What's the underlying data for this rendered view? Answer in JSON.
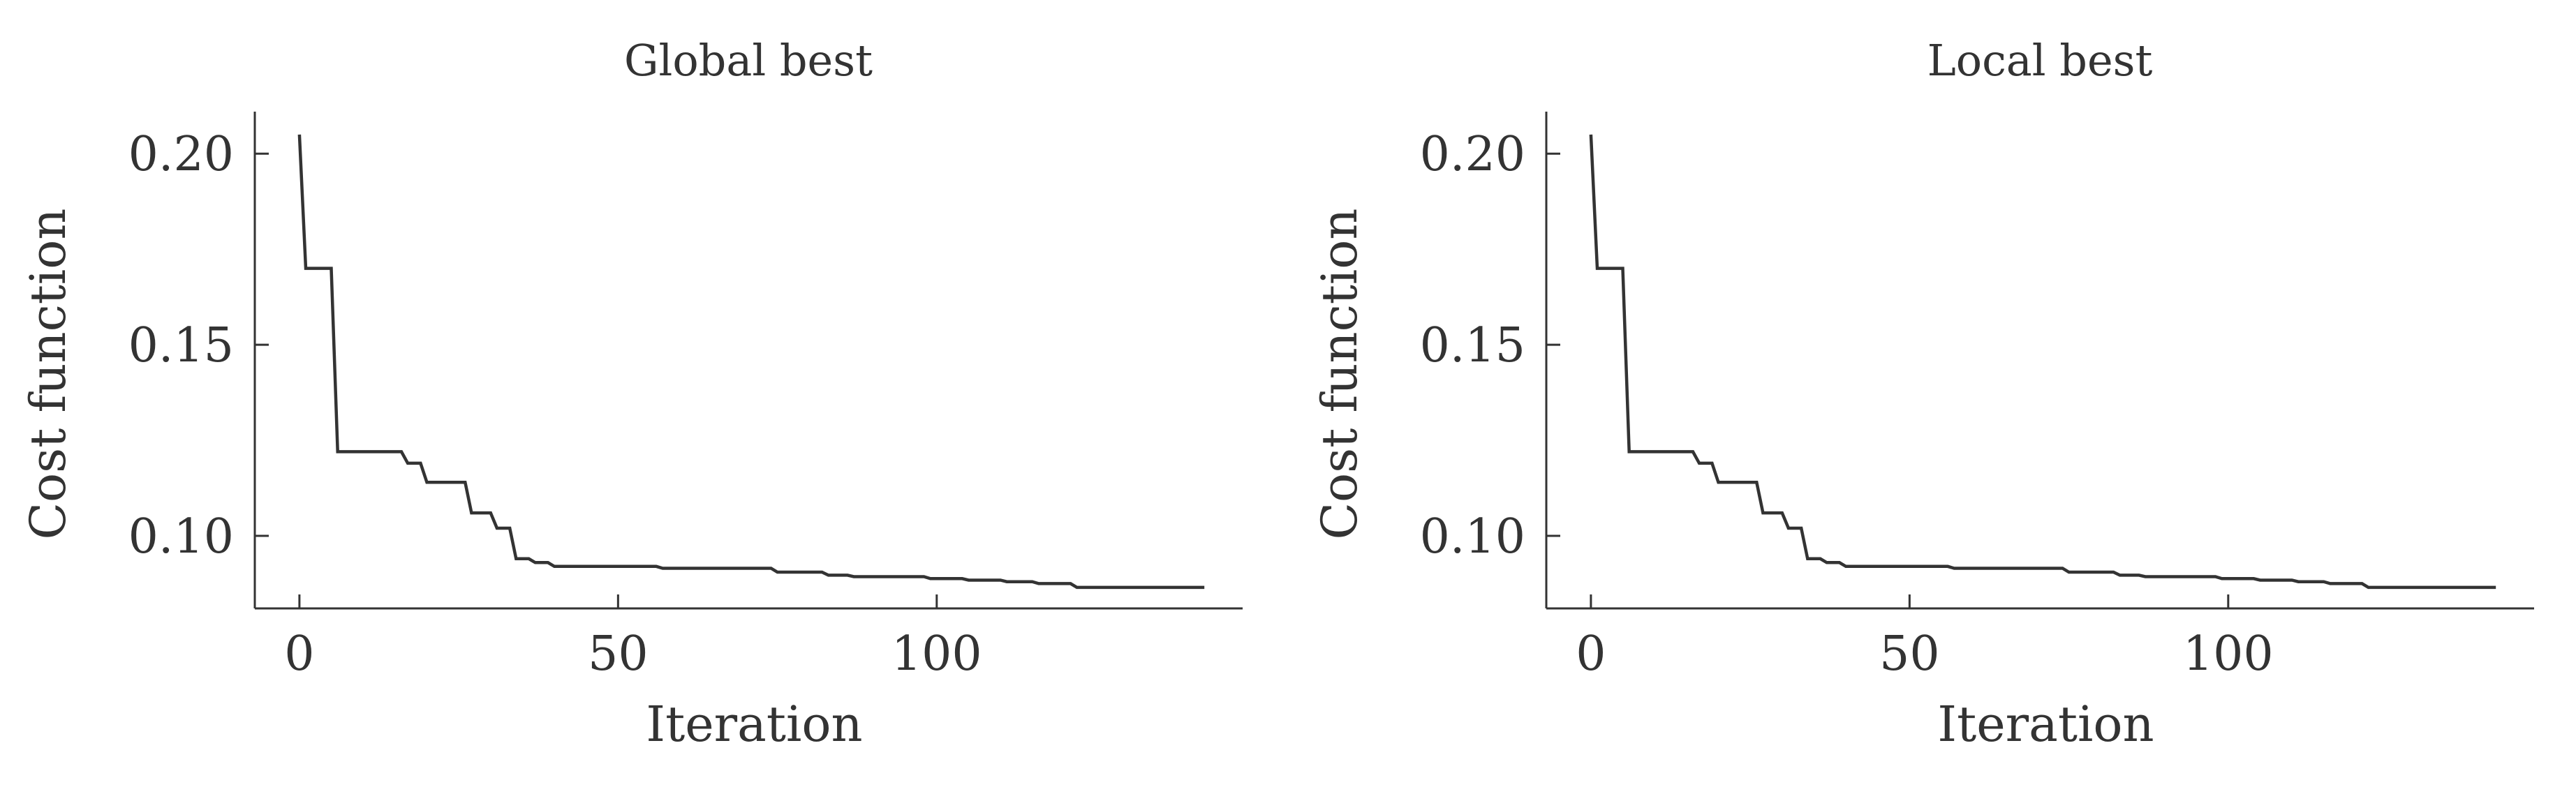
{
  "chart_data": [
    {
      "type": "line",
      "title": "Global best",
      "xlabel": "Iteration",
      "ylabel": "Cost function",
      "xlim": [
        -7,
        148
      ],
      "ylim": [
        0.081,
        0.211
      ],
      "xticks": [
        0,
        50,
        100
      ],
      "yticks": [
        0.1,
        0.15,
        0.2
      ],
      "xtick_labels": [
        "0",
        "50",
        "100"
      ],
      "ytick_labels": [
        "0.10",
        "0.15",
        "0.20"
      ],
      "grid": false,
      "series": [
        {
          "color": "#333333",
          "x": [
            0,
            1,
            5,
            6,
            16,
            17,
            19,
            20,
            26,
            27,
            30,
            31,
            33,
            34,
            36,
            37,
            39,
            40,
            56,
            57,
            74,
            75,
            82,
            83,
            86,
            87,
            98,
            99,
            104,
            105,
            110,
            111,
            115,
            116,
            121,
            122,
            142
          ],
          "y": [
            0.205,
            0.17,
            0.17,
            0.122,
            0.122,
            0.119,
            0.119,
            0.114,
            0.114,
            0.106,
            0.106,
            0.102,
            0.102,
            0.094,
            0.094,
            0.093,
            0.093,
            0.092,
            0.092,
            0.0915,
            0.0915,
            0.0905,
            0.0905,
            0.0897,
            0.0897,
            0.0893,
            0.0893,
            0.0888,
            0.0888,
            0.0884,
            0.0884,
            0.088,
            0.088,
            0.0875,
            0.0875,
            0.0865,
            0.0865
          ]
        }
      ]
    },
    {
      "type": "line",
      "title": "Local best",
      "xlabel": "Iteration",
      "ylabel": "Cost function",
      "xlim": [
        -7,
        148
      ],
      "ylim": [
        0.081,
        0.211
      ],
      "xticks": [
        0,
        50,
        100
      ],
      "yticks": [
        0.1,
        0.15,
        0.2
      ],
      "xtick_labels": [
        "0",
        "50",
        "100"
      ],
      "ytick_labels": [
        "0.10",
        "0.15",
        "0.20"
      ],
      "grid": false,
      "series": [
        {
          "color": "#333333",
          "x": [
            0,
            1,
            5,
            6,
            16,
            17,
            19,
            20,
            26,
            27,
            30,
            31,
            33,
            34,
            36,
            37,
            39,
            40,
            56,
            57,
            74,
            75,
            82,
            83,
            86,
            87,
            98,
            99,
            104,
            105,
            110,
            111,
            115,
            116,
            121,
            122,
            142
          ],
          "y": [
            0.205,
            0.17,
            0.17,
            0.122,
            0.122,
            0.119,
            0.119,
            0.114,
            0.114,
            0.106,
            0.106,
            0.102,
            0.102,
            0.094,
            0.094,
            0.093,
            0.093,
            0.092,
            0.092,
            0.0915,
            0.0915,
            0.0905,
            0.0905,
            0.0897,
            0.0897,
            0.0893,
            0.0893,
            0.0888,
            0.0888,
            0.0884,
            0.0884,
            0.088,
            0.088,
            0.0875,
            0.0875,
            0.0865,
            0.0865
          ]
        }
      ]
    }
  ]
}
